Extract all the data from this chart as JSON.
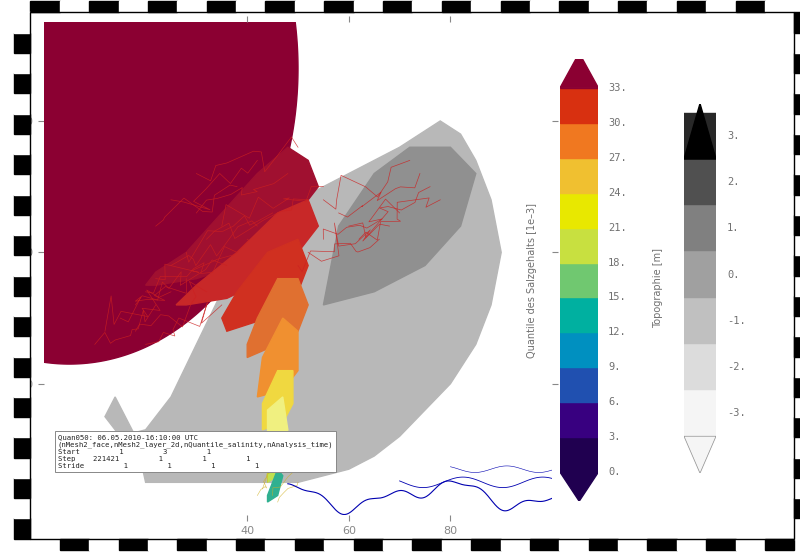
{
  "bg_color": "#ffffff",
  "dark_crimson": "#8b0032",
  "colorbar1_label": "Quantile des Salzgehalts [1e–3]",
  "colorbar1_ticks": [
    0,
    3,
    6,
    9,
    12,
    15,
    18,
    21,
    24,
    27,
    30,
    33
  ],
  "colorbar1_colors": [
    "#200050",
    "#380080",
    "#2050b0",
    "#0090c0",
    "#00b0a0",
    "#70c870",
    "#c8e040",
    "#e8e800",
    "#f0c030",
    "#f07820",
    "#d83010",
    "#8b0032"
  ],
  "colorbar2_label": "Topographie [m]",
  "colorbar2_ticks": [
    -3,
    -2,
    -1,
    0,
    1,
    2,
    3
  ],
  "colorbar2_colors": [
    "#f5f5f5",
    "#dcdcdc",
    "#c0c0c0",
    "#a0a0a0",
    "#808080",
    "#505050",
    "#282828",
    "#000000"
  ],
  "annotation_text": "Quan050: 06.05.2010-16:10:00 UTC\n(nMesh2_face,nMesh2_layer_2d,nQuantile_salinity,nAnalysis_time)\nStart         1         3         1\nStep    221421         1         1         1\nStride         1         1         1         1",
  "checker_n": 26,
  "checker_size": 0.02,
  "coast_color": "#0000b0",
  "gray_land": "#b8b8b8",
  "gray_topo": "#909090",
  "white_area": "#f0f0f0"
}
